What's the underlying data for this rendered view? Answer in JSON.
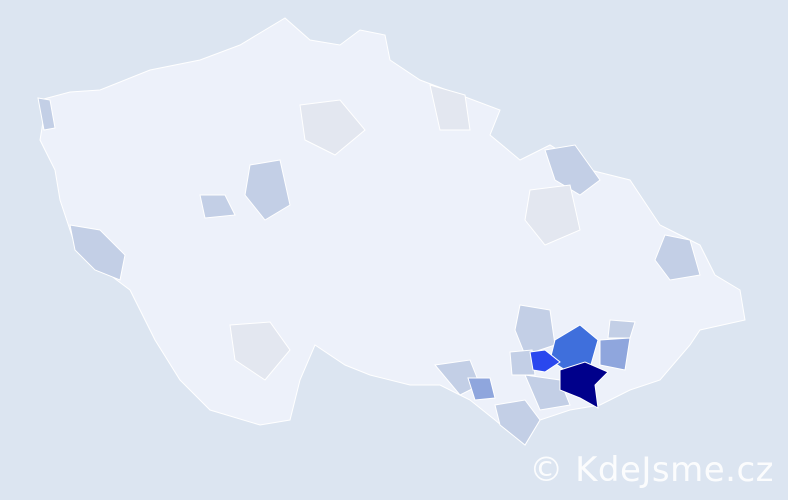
{
  "watermark": {
    "text": "© KdeJsme.cz"
  },
  "colors": {
    "background": "#dce5f1",
    "base_region": "#edf1fa",
    "light_region": "#e3e7f0",
    "pale_blue": "#c3cfe6",
    "mid_blue": "#8fa6dd",
    "strong_blue": "#3f6fdc",
    "bright_blue": "#2a47ee",
    "dark_navy": "#00008b",
    "border": "#ffffff"
  }
}
